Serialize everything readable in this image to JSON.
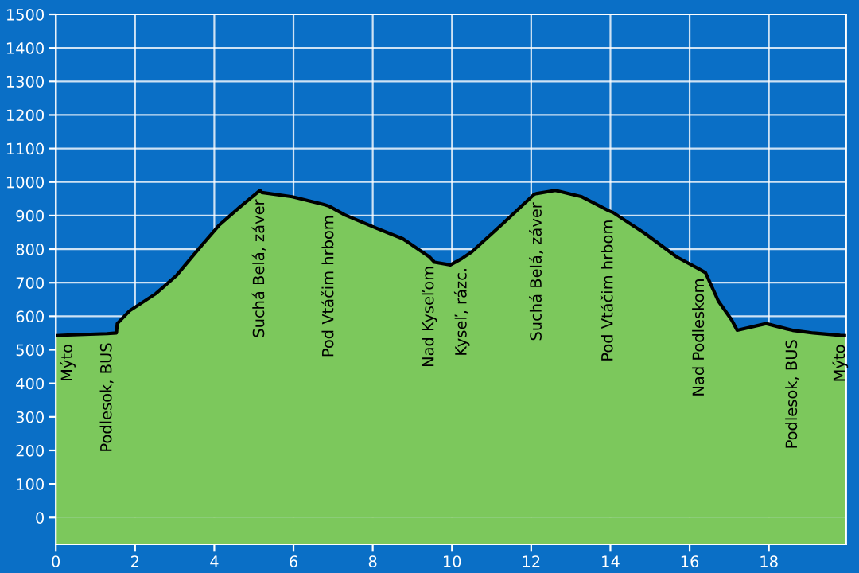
{
  "chart_data": {
    "type": "area",
    "x": [
      0,
      0.3,
      1.3,
      1.53,
      1.55,
      1.86,
      2.52,
      3.05,
      3.6,
      4.11,
      4.64,
      5.15,
      5.2,
      5.97,
      6.77,
      6.9,
      7.3,
      8.1,
      8.76,
      9.43,
      9.56,
      9.96,
      10.25,
      10.5,
      11.3,
      12.08,
      12.15,
      12.61,
      13.28,
      13.95,
      14.07,
      14.87,
      15.67,
      16.25,
      16.4,
      16.73,
      17.06,
      17.2,
      17.93,
      18.46,
      18.6,
      19.12,
      19.8,
      19.95
    ],
    "series": [
      {
        "color": "#7cc85c",
        "values": [
          542,
          544,
          548,
          550,
          578,
          616,
          667,
          722,
          800,
          870,
          925,
          975,
          969,
          956,
          933,
          928,
          902,
          862,
          831,
          777,
          761,
          753,
          772,
          792,
          878,
          964,
          966,
          975,
          956,
          915,
          909,
          847,
          777,
          740,
          730,
          644,
          589,
          558,
          578,
          562,
          558,
          550,
          543,
          542
        ]
      }
    ],
    "xlim": [
      0,
      19.95
    ],
    "ylim": [
      -80,
      1500
    ],
    "xticks": [
      0,
      2,
      4,
      6,
      8,
      10,
      12,
      14,
      16,
      18
    ],
    "yticks": [
      0,
      100,
      200,
      300,
      400,
      500,
      600,
      700,
      800,
      900,
      1000,
      1100,
      1200,
      1300,
      1400,
      1500
    ],
    "grid": true,
    "bands": [
      {
        "axis": "y",
        "from": -80,
        "to": 0,
        "color": "#7cc85c"
      }
    ],
    "annotations": [
      {
        "text": "Mýto",
        "x": 0.3,
        "y": 544
      },
      {
        "text": "Podlesok, BUS",
        "x": 1.3,
        "y": 548
      },
      {
        "text": "Suchá Belá, záver",
        "x": 5.15,
        "y": 975
      },
      {
        "text": "Pod Vtáčim hrbom",
        "x": 6.9,
        "y": 928
      },
      {
        "text": "Nad Kyseľom",
        "x": 9.43,
        "y": 777
      },
      {
        "text": "Kyseľ, rázc.",
        "x": 10.25,
        "y": 772
      },
      {
        "text": "Suchá Belá, záver",
        "x": 12.15,
        "y": 966
      },
      {
        "text": "Pod Vtáčim hrbom",
        "x": 13.95,
        "y": 915
      },
      {
        "text": "Nad Podleskom",
        "x": 16.25,
        "y": 740
      },
      {
        "text": "Podlesok, BUS",
        "x": 18.6,
        "y": 558
      },
      {
        "text": "Mýto",
        "x": 19.8,
        "y": 543
      }
    ]
  }
}
